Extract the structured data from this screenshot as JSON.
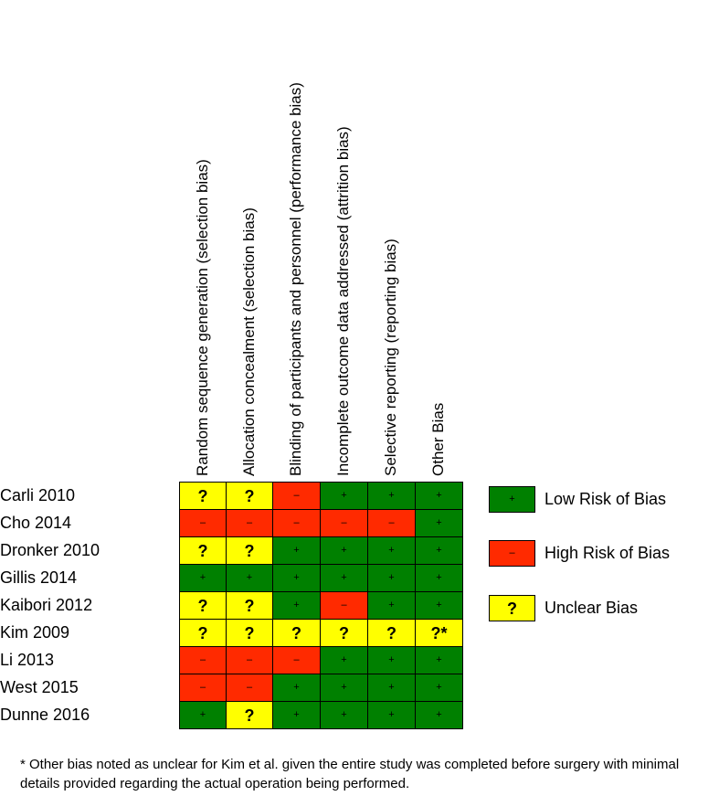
{
  "chart_data": {
    "type": "table",
    "domains": [
      "Random sequence generation (selection bias)",
      "Allocation concealment (selection bias)",
      "Blinding of participants and personnel (performance bias)",
      "Incomplete outcome data addressed (attrition bias)",
      "Selective reporting (reporting bias)",
      "Other Bias"
    ],
    "studies": [
      {
        "name": "Carli 2010",
        "ratings": [
          "unclear",
          "unclear",
          "high",
          "low",
          "low",
          "low"
        ]
      },
      {
        "name": "Cho 2014",
        "ratings": [
          "high",
          "high",
          "high",
          "high",
          "high",
          "low"
        ]
      },
      {
        "name": "Dronker 2010",
        "ratings": [
          "unclear",
          "unclear",
          "low",
          "low",
          "low",
          "low"
        ]
      },
      {
        "name": "Gillis 2014",
        "ratings": [
          "low",
          "low",
          "low",
          "low",
          "low",
          "low"
        ]
      },
      {
        "name": "Kaibori 2012",
        "ratings": [
          "unclear",
          "unclear",
          "low",
          "high",
          "low",
          "low"
        ]
      },
      {
        "name": "Kim 2009",
        "ratings": [
          "unclear",
          "unclear",
          "unclear",
          "unclear",
          "unclear",
          "unclear*"
        ]
      },
      {
        "name": "Li 2013",
        "ratings": [
          "high",
          "high",
          "high",
          "low",
          "low",
          "low"
        ]
      },
      {
        "name": "West 2015",
        "ratings": [
          "high",
          "high",
          "low",
          "low",
          "low",
          "low"
        ]
      },
      {
        "name": "Dunne 2016",
        "ratings": [
          "low",
          "unclear",
          "low",
          "low",
          "low",
          "low"
        ]
      }
    ],
    "legend": [
      {
        "key": "low",
        "label": "Low Risk of Bias",
        "symbol": "+"
      },
      {
        "key": "high",
        "label": "High Risk of Bias",
        "symbol": "–"
      },
      {
        "key": "unclear",
        "label": "Unclear Bias",
        "symbol": "?"
      }
    ],
    "legend_position": "right"
  },
  "colors": {
    "low": "#008000",
    "high": "#ff2a00",
    "unclear": "#ffff00"
  },
  "footnote": "* Other bias noted as unclear for Kim et al. given the entire study was completed before surgery with minimal details provided regarding the actual operation being performed."
}
